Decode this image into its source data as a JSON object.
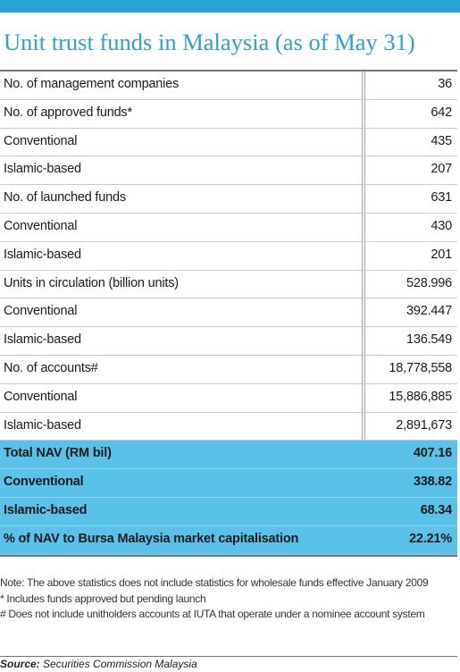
{
  "title": "Unit trust funds in Malaysia (as of May 31)",
  "rows": [
    {
      "label": "No. of management companies",
      "value": "36"
    },
    {
      "label": "No. of approved funds*",
      "value": "642"
    },
    {
      "label": "Conventional",
      "value": "435"
    },
    {
      "label": "Islamic-based",
      "value": "207"
    },
    {
      "label": "No. of launched funds",
      "value": "631"
    },
    {
      "label": "Conventional",
      "value": "430"
    },
    {
      "label": "Islamic-based",
      "value": "201"
    },
    {
      "label": "Units in circulation (billion units)",
      "value": "528.996"
    },
    {
      "label": "Conventional",
      "value": "392.447"
    },
    {
      "label": "Islamic-based",
      "value": "136.549"
    },
    {
      "label": "No. of accounts#",
      "value": "18,778,558"
    },
    {
      "label": "Conventional",
      "value": "15,886,885"
    },
    {
      "label": "Islamic-based",
      "value": "2,891,673"
    },
    {
      "label": "Total NAV (RM bil)",
      "value": "407.16"
    },
    {
      "label": "Conventional",
      "value": "338.82"
    },
    {
      "label": "Islamic-based",
      "value": "68.34"
    },
    {
      "label": "% of NAV to Bursa Malaysia market capitalisation",
      "value": "22.21%"
    }
  ],
  "notes": {
    "note": "Note: The above statistics does not include statistics for wholesale funds effective January 2009",
    "asterisk": "* Includes funds approved but pending launch",
    "hash": "# Does not include unitholders accounts at IUTA that operate under a nominee account system"
  },
  "source": {
    "prefix": "Source:",
    "text": " Securities Commission Malaysia"
  },
  "colors": {
    "accent": "#2e9fd0",
    "highlight_row": "#5ac1e8"
  }
}
